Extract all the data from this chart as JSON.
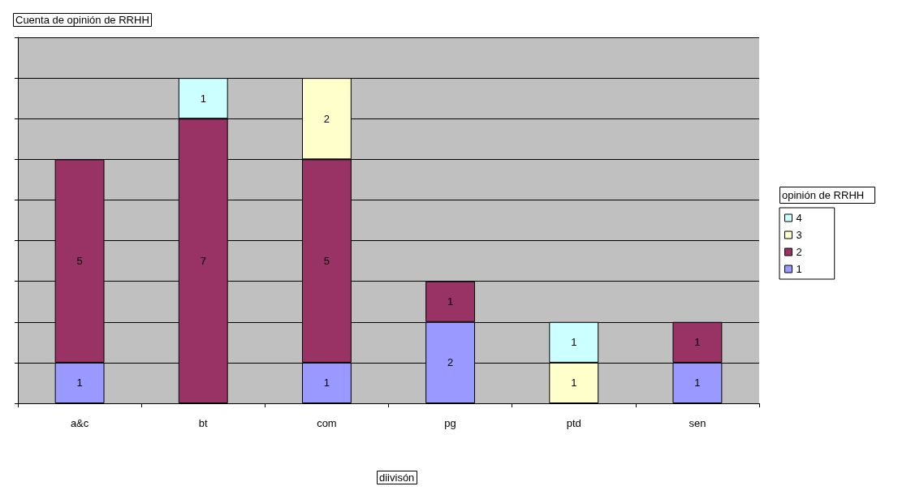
{
  "chart_data": {
    "type": "bar",
    "title": "Cuenta de opinión de RRHH",
    "xlabel": "diivisón",
    "legend_title": "opinión de RRHH",
    "categories": [
      "a&c",
      "bt",
      "com",
      "pg",
      "ptd",
      "sen"
    ],
    "stacked": true,
    "data_labels": true,
    "grid": "y",
    "legend": "right",
    "tick_labels": "x",
    "ylim": [
      0,
      9
    ],
    "yticks": [
      {
        "value": 0,
        "label": null
      },
      {
        "value": 1,
        "label": null
      },
      {
        "value": 2,
        "label": null
      },
      {
        "value": 3,
        "label": null
      },
      {
        "value": 4,
        "label": null
      },
      {
        "value": 5,
        "label": null
      },
      {
        "value": 6,
        "label": null
      },
      {
        "value": 7,
        "label": null
      },
      {
        "value": 8,
        "label": null
      },
      {
        "value": 9,
        "label": null
      }
    ],
    "series": [
      {
        "name": "1",
        "color": "#9999ff",
        "values": [
          1,
          null,
          1,
          2,
          null,
          1
        ]
      },
      {
        "name": "2",
        "color": "#993366",
        "values": [
          5,
          7,
          5,
          1,
          null,
          1
        ]
      },
      {
        "name": "3",
        "color": "#ffffcc",
        "values": [
          null,
          null,
          2,
          null,
          1,
          null
        ]
      },
      {
        "name": "4",
        "color": "#ccffff",
        "values": [
          null,
          1,
          null,
          null,
          1,
          null
        ]
      }
    ]
  }
}
